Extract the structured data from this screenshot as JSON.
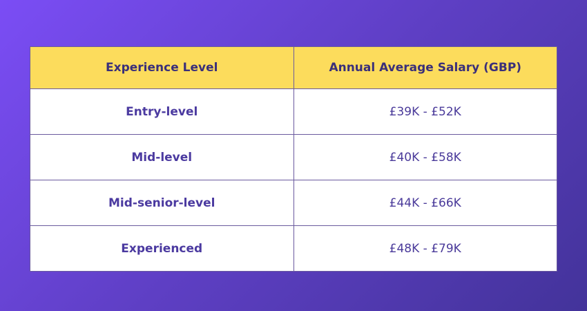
{
  "table": {
    "header": [
      "Experience Level",
      "Annual Average Salary (GBP)"
    ],
    "rows": [
      [
        "Entry-level",
        "£39K - £52K"
      ],
      [
        "Mid-level",
        "£40K - £58K"
      ],
      [
        "Mid-senior-level",
        "£44K - £66K"
      ],
      [
        "Experienced",
        "£48K - £79K"
      ]
    ]
  }
}
